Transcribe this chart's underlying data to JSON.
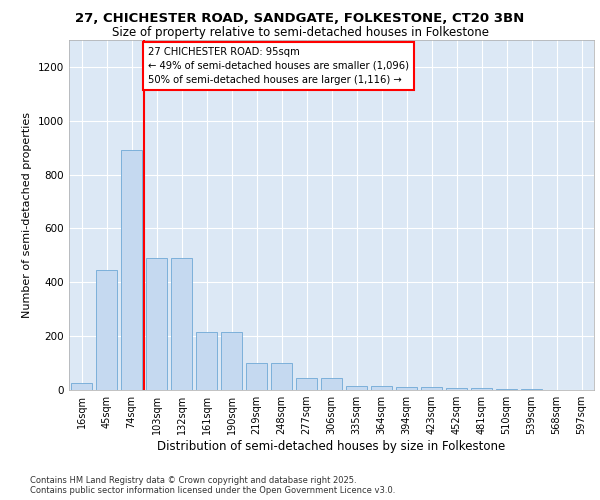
{
  "title_line1": "27, CHICHESTER ROAD, SANDGATE, FOLKESTONE, CT20 3BN",
  "title_line2": "Size of property relative to semi-detached houses in Folkestone",
  "xlabel": "Distribution of semi-detached houses by size in Folkestone",
  "ylabel": "Number of semi-detached properties",
  "categories": [
    "16sqm",
    "45sqm",
    "74sqm",
    "103sqm",
    "132sqm",
    "161sqm",
    "190sqm",
    "219sqm",
    "248sqm",
    "277sqm",
    "306sqm",
    "335sqm",
    "364sqm",
    "394sqm",
    "423sqm",
    "452sqm",
    "481sqm",
    "510sqm",
    "539sqm",
    "568sqm",
    "597sqm"
  ],
  "values": [
    25,
    445,
    890,
    490,
    490,
    215,
    215,
    100,
    100,
    45,
    45,
    15,
    15,
    12,
    12,
    8,
    8,
    3,
    3,
    1,
    1
  ],
  "bar_color": "#c5d9f0",
  "bar_edge_color": "#6fa8d6",
  "bg_color": "#dce8f5",
  "red_line_index": 2,
  "annotation_title": "27 CHICHESTER ROAD: 95sqm",
  "annotation_line1": "← 49% of semi-detached houses are smaller (1,096)",
  "annotation_line2": "50% of semi-detached houses are larger (1,116) →",
  "ylim": [
    0,
    1300
  ],
  "yticks": [
    0,
    200,
    400,
    600,
    800,
    1000,
    1200
  ],
  "footer_line1": "Contains HM Land Registry data © Crown copyright and database right 2025.",
  "footer_line2": "Contains public sector information licensed under the Open Government Licence v3.0."
}
